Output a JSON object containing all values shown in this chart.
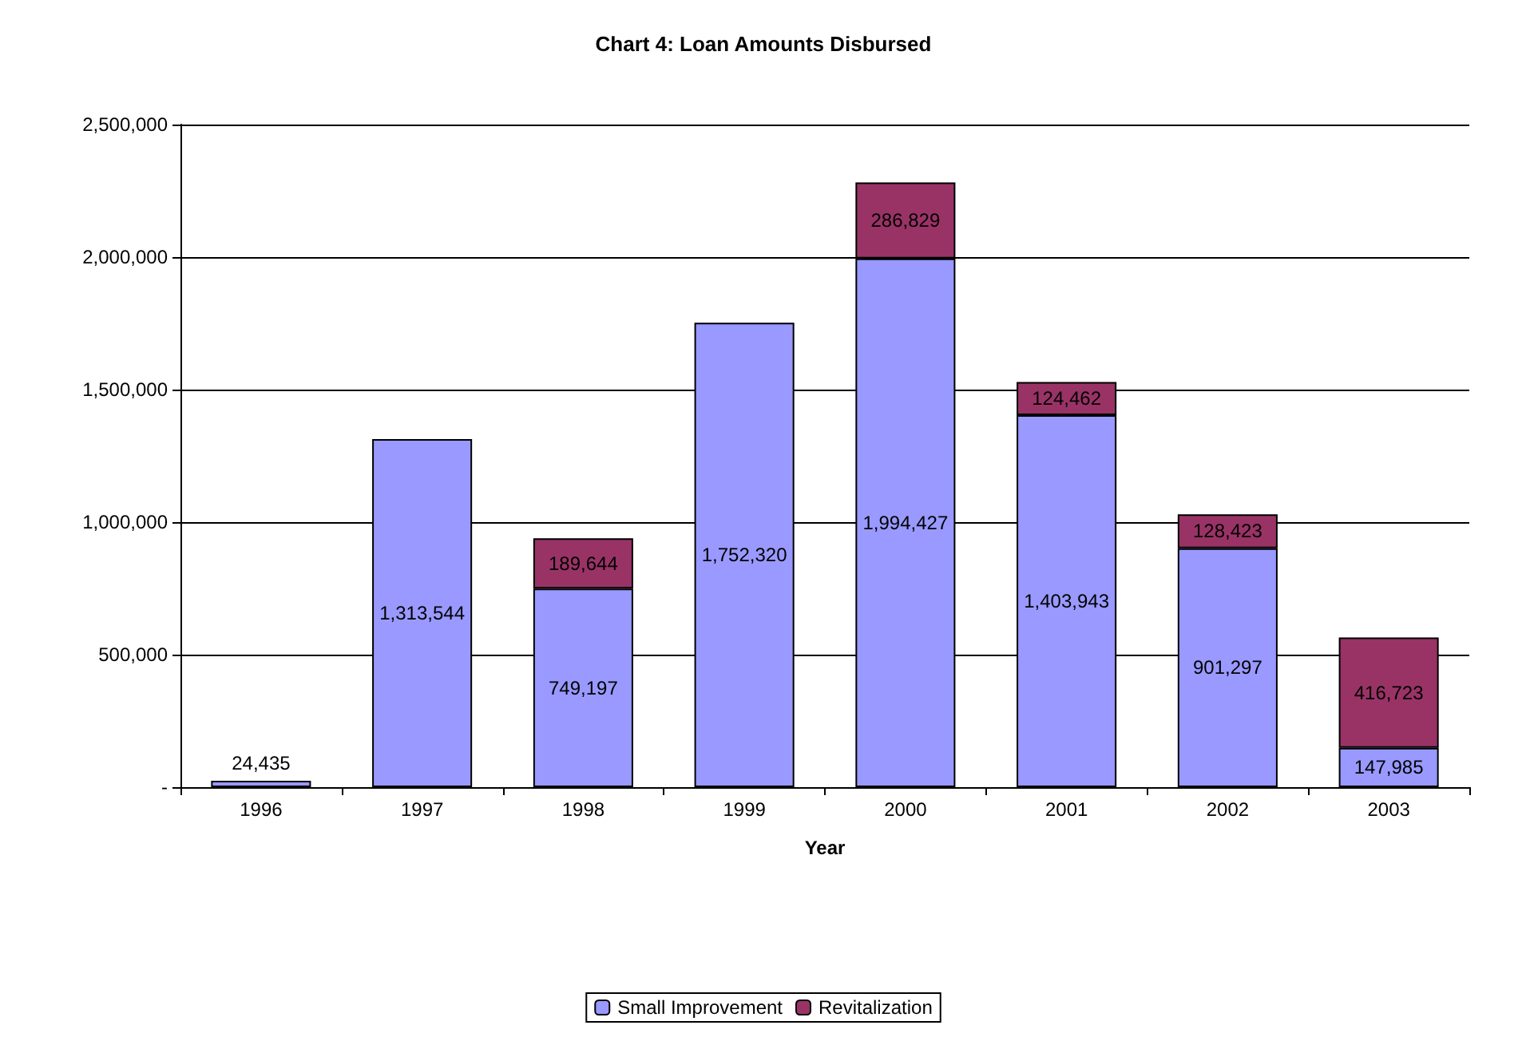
{
  "chart_data": {
    "type": "bar",
    "title": "Chart 4: Loan Amounts Disbursed",
    "xlabel": "Year",
    "stacked": true,
    "categories": [
      "1996",
      "1997",
      "1998",
      "1999",
      "2000",
      "2001",
      "2002",
      "2003"
    ],
    "series": [
      {
        "name": "Small Improvement",
        "color": "#9999ff",
        "values": [
          24435,
          1313544,
          749197,
          1752320,
          1994427,
          1403943,
          901297,
          147985
        ],
        "value_labels": [
          "24,435",
          "1,313,544",
          "749,197",
          "1,752,320",
          "1,994,427",
          "1,403,943",
          "901,297",
          "147,985"
        ]
      },
      {
        "name": "Revitalization",
        "color": "#993366",
        "values": [
          null,
          null,
          189644,
          null,
          286829,
          124462,
          128423,
          416723
        ],
        "value_labels": [
          null,
          null,
          "189,644",
          null,
          "286,829",
          "124,462",
          "128,423",
          "416,723"
        ]
      }
    ],
    "ylim": [
      0,
      2500000
    ],
    "yticks": [
      {
        "value": 0,
        "label": "-"
      },
      {
        "value": 500000,
        "label": "500,000"
      },
      {
        "value": 1000000,
        "label": "1,000,000"
      },
      {
        "value": 1500000,
        "label": "1,500,000"
      },
      {
        "value": 2000000,
        "label": "2,000,000"
      },
      {
        "value": 2500000,
        "label": "2,500,000"
      }
    ],
    "grid": "y",
    "legend": "bottom"
  }
}
